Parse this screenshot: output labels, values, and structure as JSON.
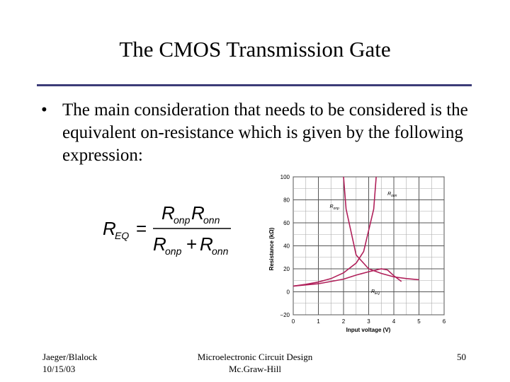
{
  "slide": {
    "title": "The CMOS Transmission Gate",
    "bullet_symbol": "•",
    "bullet_text": "The main consideration that needs to be considered is the equivalent on-resistance which is given by the following expression:"
  },
  "equation": {
    "lhs": "R",
    "lhs_sub": "EQ",
    "equals": "=",
    "num_a": "R",
    "num_a_sub": "onp",
    "num_b": "R",
    "num_b_sub": "onn",
    "den_a": "R",
    "den_a_sub": "onp",
    "plus": "+",
    "den_b": "R",
    "den_b_sub": "onn"
  },
  "footer": {
    "left_line1": "Jaeger/Blalock",
    "left_line2": "10/15/03",
    "center_line1": "Microelectronic Circuit Design",
    "center_line2": "Mc.Graw-Hill",
    "page_number": "50"
  },
  "chart_data": {
    "type": "line",
    "xlabel": "Input voltage (V)",
    "ylabel": "Resistance (kΩ)",
    "xlim": [
      0,
      6
    ],
    "ylim": [
      -20,
      100
    ],
    "x_ticks": [
      "0",
      "1",
      "2",
      "3",
      "4",
      "5",
      "6"
    ],
    "y_ticks": [
      "−20",
      "0",
      "20",
      "40",
      "60",
      "80",
      "100"
    ],
    "grid": true,
    "line_color": "#b0205a",
    "series": [
      {
        "name": "R",
        "name_sub": "onp",
        "label_x": 1.45,
        "label_y": 73,
        "points": [
          [
            0.0,
            5
          ],
          [
            0.5,
            6.5
          ],
          [
            1.0,
            8.5
          ],
          [
            1.5,
            11.5
          ],
          [
            2.0,
            16.5
          ],
          [
            2.5,
            25
          ],
          [
            2.8,
            35
          ],
          [
            3.2,
            72
          ],
          [
            3.3,
            100
          ]
        ]
      },
      {
        "name": "R",
        "name_sub": "onn",
        "label_x": 3.75,
        "label_y": 84,
        "points": [
          [
            2.0,
            100
          ],
          [
            2.1,
            72
          ],
          [
            2.5,
            32
          ],
          [
            3.0,
            20
          ],
          [
            3.5,
            16
          ],
          [
            4.0,
            13
          ],
          [
            4.5,
            11.5
          ],
          [
            5.0,
            10.5
          ]
        ]
      },
      {
        "name": "R",
        "name_sub": "EQ",
        "label_x": 3.1,
        "label_y": -1,
        "points": [
          [
            0.0,
            5
          ],
          [
            1.0,
            7
          ],
          [
            2.0,
            11
          ],
          [
            2.5,
            14.5
          ],
          [
            3.0,
            17.5
          ],
          [
            3.5,
            20
          ],
          [
            3.75,
            19
          ],
          [
            4.0,
            14
          ],
          [
            4.3,
            9
          ]
        ]
      }
    ]
  }
}
